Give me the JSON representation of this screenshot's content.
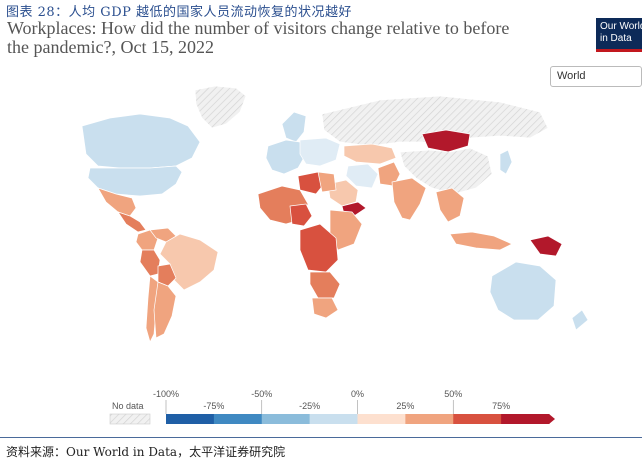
{
  "figure_caption": "图表 28：人均 GDP 越低的国家人员流动恢复的状况越好",
  "title": {
    "line1": "Workplaces: How did the number of visitors change relative to before",
    "line2": "the pandemic?, Oct 15, 2022"
  },
  "logo": {
    "line1": "Our World",
    "line2": "in Data"
  },
  "region_selector": {
    "selected": "World"
  },
  "legend": {
    "no_data_label": "No data",
    "top_ticks": [
      "-100%",
      "-50%",
      "0%",
      "50%"
    ],
    "bottom_ticks": [
      "-75%",
      "-25%",
      "25%",
      "75%"
    ],
    "colors": [
      "#1f5fa6",
      "#3f89c2",
      "#8bbcdb",
      "#c9dfee",
      "#fde0cf",
      "#f0a47f",
      "#d8513f",
      "#b2182b"
    ]
  },
  "source": "资料来源：Our World in Data，太平洋证券研究院",
  "chart_data": {
    "type": "choropleth",
    "metric": "Workplaces: change in visitors relative to before the pandemic",
    "date": "Oct 15, 2022",
    "scale_percent": [
      -100,
      -75,
      -50,
      -25,
      0,
      25,
      50,
      75
    ],
    "colors": {
      "nodata": "#ececec",
      "v_neg20": "#c9dfee",
      "v_neg5": "#e0ecf5",
      "v_5": "#fde7da",
      "v_20": "#f7c8ad",
      "v_35": "#f0a47f",
      "v_50": "#e47e5c",
      "v_65": "#d8513f",
      "v_80": "#b2182b"
    },
    "regions": [
      {
        "name": "Canada",
        "category": "v_neg20"
      },
      {
        "name": "United States",
        "category": "v_neg20"
      },
      {
        "name": "Mexico",
        "category": "v_35"
      },
      {
        "name": "Central America",
        "category": "v_50"
      },
      {
        "name": "Colombia",
        "category": "v_35"
      },
      {
        "name": "Venezuela",
        "category": "v_35"
      },
      {
        "name": "Brazil",
        "category": "v_20"
      },
      {
        "name": "Peru",
        "category": "v_50"
      },
      {
        "name": "Bolivia",
        "category": "v_50"
      },
      {
        "name": "Chile",
        "category": "v_35"
      },
      {
        "name": "Argentina",
        "category": "v_35"
      },
      {
        "name": "Greenland",
        "category": "nodata"
      },
      {
        "name": "Russia",
        "category": "nodata"
      },
      {
        "name": "China",
        "category": "nodata"
      },
      {
        "name": "Western Europe",
        "category": "v_neg20"
      },
      {
        "name": "Scandinavia",
        "category": "v_neg20"
      },
      {
        "name": "Eastern Europe",
        "category": "v_neg5"
      },
      {
        "name": "Libya",
        "category": "v_65"
      },
      {
        "name": "Egypt",
        "category": "v_35"
      },
      {
        "name": "West Africa",
        "category": "v_50"
      },
      {
        "name": "Nigeria",
        "category": "v_65"
      },
      {
        "name": "East Africa",
        "category": "v_35"
      },
      {
        "name": "Central Africa",
        "category": "v_65"
      },
      {
        "name": "Southern Africa",
        "category": "v_50"
      },
      {
        "name": "South Africa",
        "category": "v_35"
      },
      {
        "name": "Saudi Arabia",
        "category": "v_20"
      },
      {
        "name": "Yemen",
        "category": "v_80"
      },
      {
        "name": "Iran",
        "category": "v_neg5"
      },
      {
        "name": "Kazakhstan",
        "category": "v_20"
      },
      {
        "name": "Mongolia",
        "category": "v_80"
      },
      {
        "name": "Pakistan",
        "category": "v_35"
      },
      {
        "name": "India",
        "category": "v_35"
      },
      {
        "name": "Southeast Asia",
        "category": "v_35"
      },
      {
        "name": "Indonesia",
        "category": "v_35"
      },
      {
        "name": "Papua New Guinea",
        "category": "v_80"
      },
      {
        "name": "Japan",
        "category": "v_neg20"
      },
      {
        "name": "Australia",
        "category": "v_neg20"
      },
      {
        "name": "New Zealand",
        "category": "v_neg20"
      }
    ]
  }
}
